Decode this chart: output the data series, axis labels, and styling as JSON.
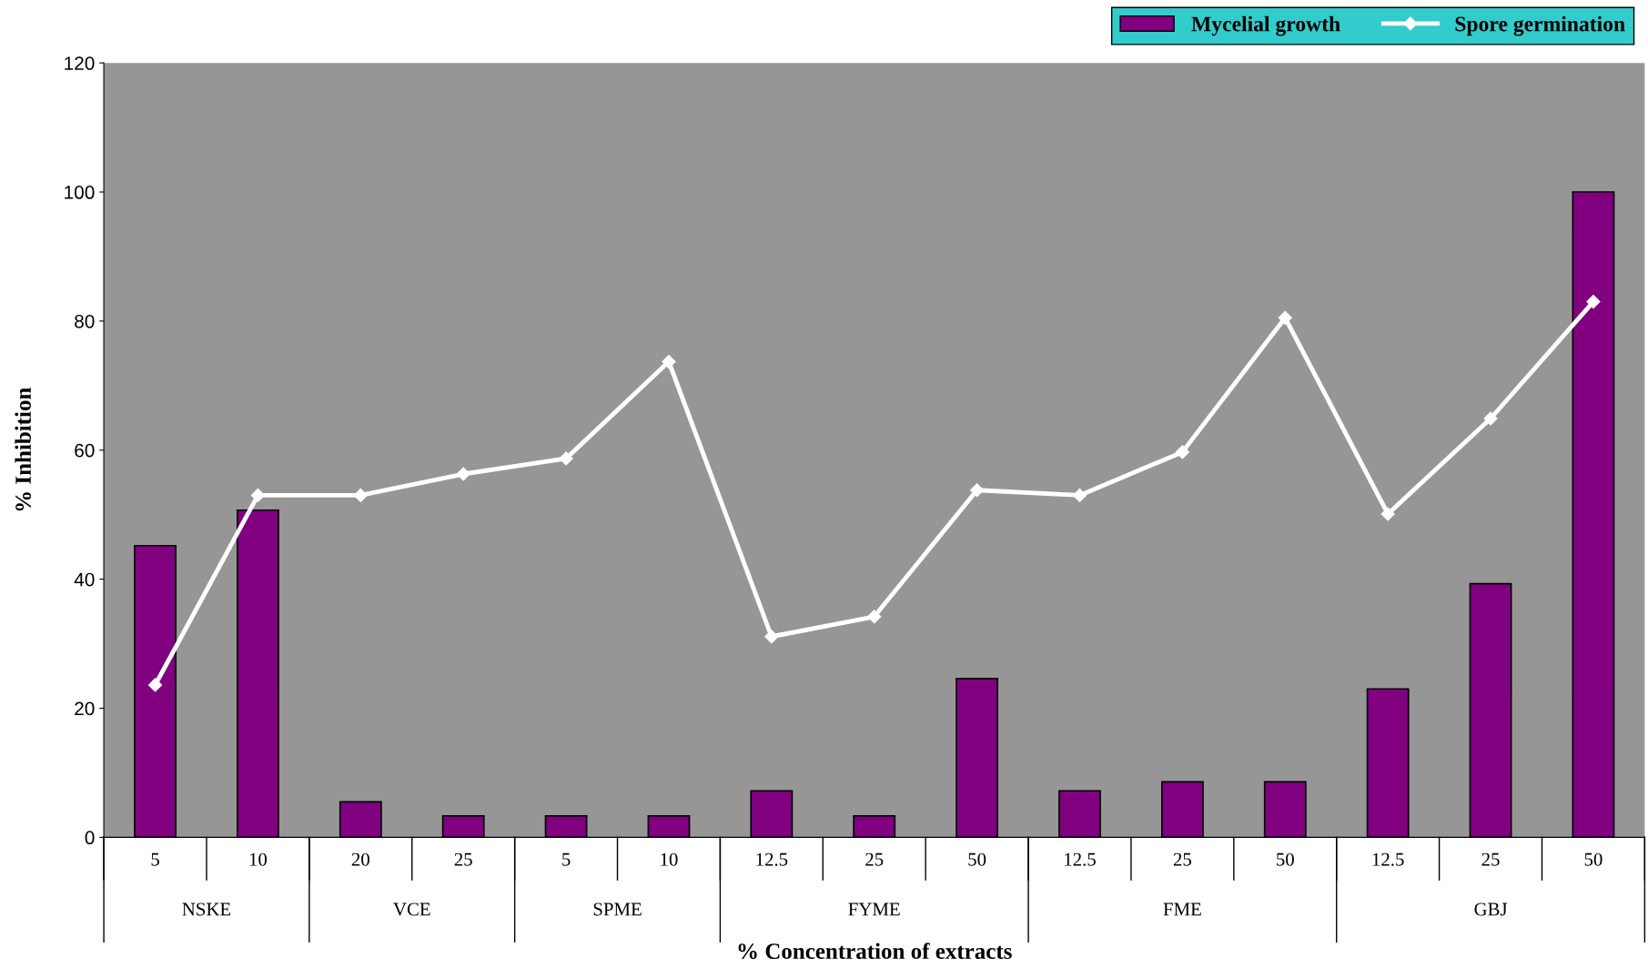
{
  "chart_data": {
    "type": "bar",
    "xlabel": "% Concentration of extracts",
    "ylabel": "% Inhibition",
    "categories": [
      "5",
      "10",
      "20",
      "25",
      "5",
      "10",
      "12.5",
      "25",
      "50",
      "12.5",
      "25",
      "50",
      "12.5",
      "25",
      "50"
    ],
    "series": [
      {
        "name": "Mycelial growth",
        "color": "#800080",
        "values": [
          45.2,
          50.7,
          5.5,
          3.3,
          3.3,
          3.3,
          7.2,
          3.3,
          24.6,
          7.2,
          8.6,
          8.6,
          23.0,
          39.3,
          100
        ]
      },
      {
        "name": "Spore germination",
        "type": "line",
        "color": "#ffffff",
        "marker": "diamond",
        "values": [
          23.6,
          53.0,
          53.0,
          56.3,
          58.7,
          73.7,
          31.1,
          34.2,
          53.8,
          53.0,
          59.7,
          80.5,
          50.1,
          64.9,
          83.0
        ]
      }
    ],
    "annotations": [
      "NSKE",
      "VCE",
      "SPME",
      "FYME",
      "FME",
      "GBJ"
    ],
    "ylim": [
      0,
      120
    ],
    "yticks": [
      0,
      20,
      40,
      60,
      80,
      100,
      120
    ],
    "grid": false,
    "legend": "top right"
  }
}
